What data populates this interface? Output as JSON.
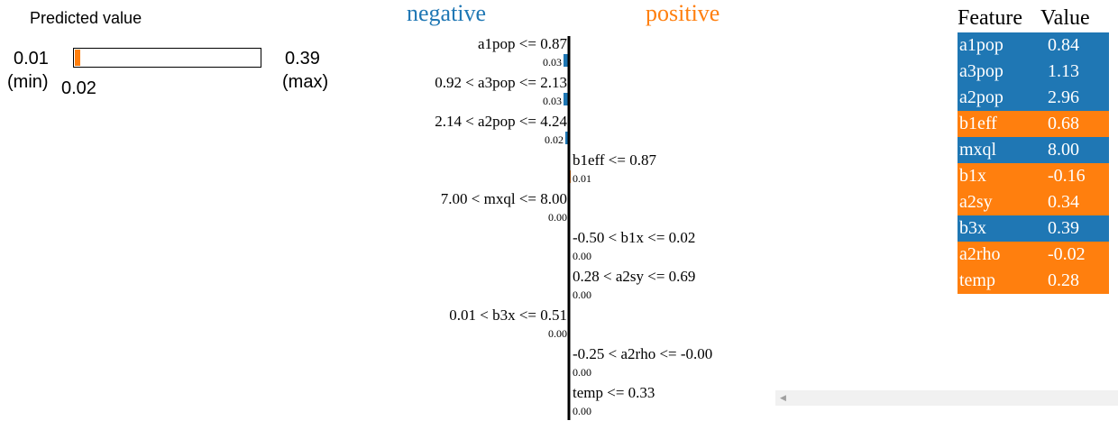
{
  "prediction": {
    "title": "Predicted value",
    "min": "0.01",
    "min_label": "(min)",
    "value": "0.02",
    "max": "0.39",
    "max_label": "(max)",
    "fraction": 0.03,
    "fill_color": "#ff7f0e"
  },
  "chart_data": {
    "type": "bar",
    "negative_label": "negative",
    "positive_label": "positive",
    "negative_color": "#1f77b4",
    "positive_color": "#ff7f0e",
    "bars": [
      {
        "condition": "a1pop <= 0.87",
        "weight": "0.03",
        "value": 0.03,
        "side": "negative"
      },
      {
        "condition": "0.92 < a3pop <= 2.13",
        "weight": "0.03",
        "value": 0.03,
        "side": "negative"
      },
      {
        "condition": "2.14 < a2pop <= 4.24",
        "weight": "0.02",
        "value": 0.02,
        "side": "negative"
      },
      {
        "condition": "b1eff <= 0.87",
        "weight": "0.01",
        "value": 0.01,
        "side": "positive"
      },
      {
        "condition": "7.00 < mxql <= 8.00",
        "weight": "0.00",
        "value": 0.0,
        "side": "negative"
      },
      {
        "condition": "-0.50 < b1x <= 0.02",
        "weight": "0.00",
        "value": 0.0,
        "side": "positive"
      },
      {
        "condition": "0.28 < a2sy <= 0.69",
        "weight": "0.00",
        "value": 0.0,
        "side": "positive"
      },
      {
        "condition": "0.01 < b3x <= 0.51",
        "weight": "0.00",
        "value": 0.0,
        "side": "negative"
      },
      {
        "condition": "-0.25 < a2rho <= -0.00",
        "weight": "0.00",
        "value": 0.0,
        "side": "positive"
      },
      {
        "condition": "temp <= 0.33",
        "weight": "0.00",
        "value": 0.0,
        "side": "positive"
      }
    ]
  },
  "table": {
    "headers": [
      "Feature",
      "Value"
    ],
    "rows": [
      {
        "feature": "a1pop",
        "value": "0.84",
        "color": "#1f77b4"
      },
      {
        "feature": "a3pop",
        "value": "1.13",
        "color": "#1f77b4"
      },
      {
        "feature": "a2pop",
        "value": "2.96",
        "color": "#1f77b4"
      },
      {
        "feature": "b1eff",
        "value": "0.68",
        "color": "#ff7f0e"
      },
      {
        "feature": "mxql",
        "value": "8.00",
        "color": "#1f77b4"
      },
      {
        "feature": "b1x",
        "value": "-0.16",
        "color": "#ff7f0e"
      },
      {
        "feature": "a2sy",
        "value": "0.34",
        "color": "#ff7f0e"
      },
      {
        "feature": "b3x",
        "value": "0.39",
        "color": "#1f77b4"
      },
      {
        "feature": "a2rho",
        "value": "-0.02",
        "color": "#ff7f0e"
      },
      {
        "feature": "temp",
        "value": "0.28",
        "color": "#ff7f0e"
      }
    ]
  }
}
